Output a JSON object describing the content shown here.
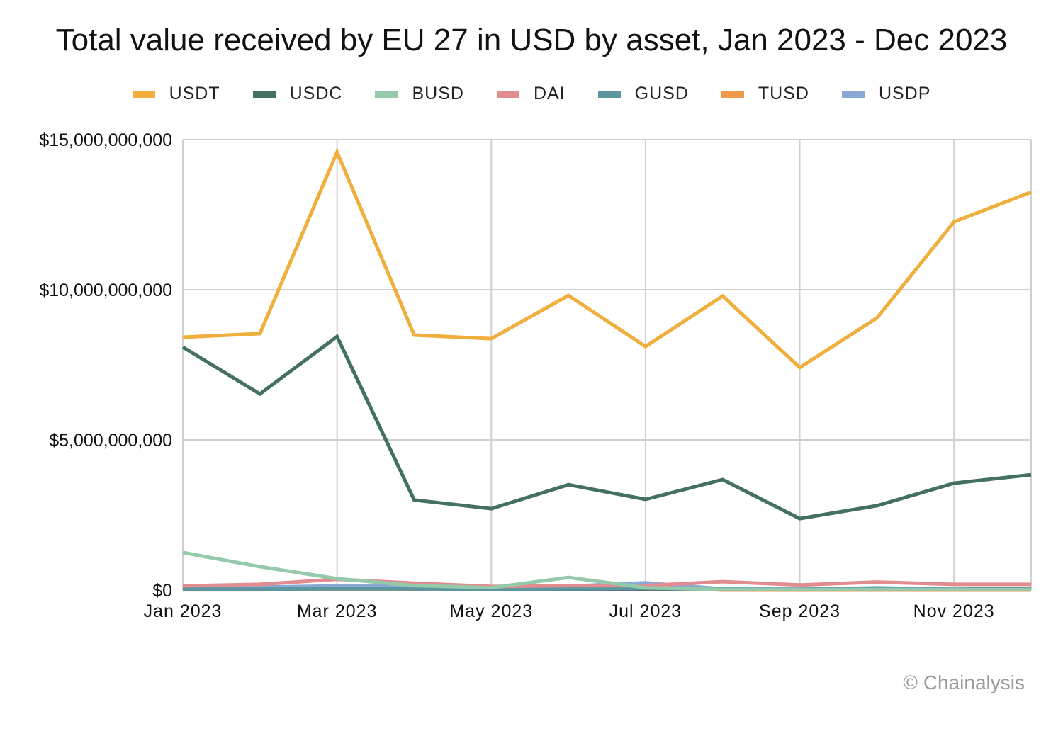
{
  "chart_data": {
    "type": "line",
    "title": "Total value received by EU 27 in USD by asset, Jan 2023 - Dec 2023",
    "xlabel": "",
    "ylabel": "",
    "x": [
      "Jan 2023",
      "Feb 2023",
      "Mar 2023",
      "Apr 2023",
      "May 2023",
      "Jun 2023",
      "Jul 2023",
      "Aug 2023",
      "Sep 2023",
      "Oct 2023",
      "Nov 2023",
      "Dec 2023"
    ],
    "x_tick_labels": [
      "Jan 2023",
      "Mar 2023",
      "May 2023",
      "Jul 2023",
      "Sep 2023",
      "Nov 2023"
    ],
    "y_tick_labels": [
      "$0",
      "$5,000,000,000",
      "$10,000,000,000",
      "$15,000,000,000"
    ],
    "y_ticks": [
      0,
      5000000000,
      10000000000,
      15000000000
    ],
    "ylim": [
      0,
      15000000000
    ],
    "grid": true,
    "legend_position": "top",
    "series": [
      {
        "name": "USDT",
        "color": "#F0AE3C",
        "values": [
          8420000000,
          8540000000,
          14580000000,
          8490000000,
          8370000000,
          9810000000,
          8110000000,
          9790000000,
          7410000000,
          9060000000,
          12260000000,
          13250000000
        ]
      },
      {
        "name": "USDC",
        "color": "#43705F",
        "values": [
          8090000000,
          6530000000,
          8440000000,
          3000000000,
          2710000000,
          3510000000,
          3020000000,
          3680000000,
          2380000000,
          2810000000,
          3560000000,
          3840000000
        ]
      },
      {
        "name": "BUSD",
        "color": "#94C9A9",
        "values": [
          1250000000,
          780000000,
          380000000,
          150000000,
          80000000,
          420000000,
          80000000,
          20000000,
          20000000,
          20000000,
          20000000,
          20000000
        ]
      },
      {
        "name": "DAI",
        "color": "#E38C8F",
        "values": [
          140000000,
          190000000,
          360000000,
          230000000,
          120000000,
          150000000,
          150000000,
          280000000,
          170000000,
          270000000,
          190000000,
          190000000
        ]
      },
      {
        "name": "GUSD",
        "color": "#5E96A0",
        "values": [
          30000000,
          30000000,
          40000000,
          40000000,
          30000000,
          40000000,
          50000000,
          30000000,
          30000000,
          70000000,
          30000000,
          60000000
        ]
      },
      {
        "name": "TUSD",
        "color": "#EF9A4B",
        "values": [
          10000000,
          10000000,
          20000000,
          40000000,
          30000000,
          50000000,
          80000000,
          0,
          0,
          0,
          0,
          0
        ]
      },
      {
        "name": "USDP",
        "color": "#8AA8D4",
        "values": [
          70000000,
          100000000,
          140000000,
          130000000,
          100000000,
          130000000,
          240000000,
          40000000,
          30000000,
          30000000,
          30000000,
          40000000
        ]
      }
    ]
  },
  "watermark": "© Chainalysis"
}
